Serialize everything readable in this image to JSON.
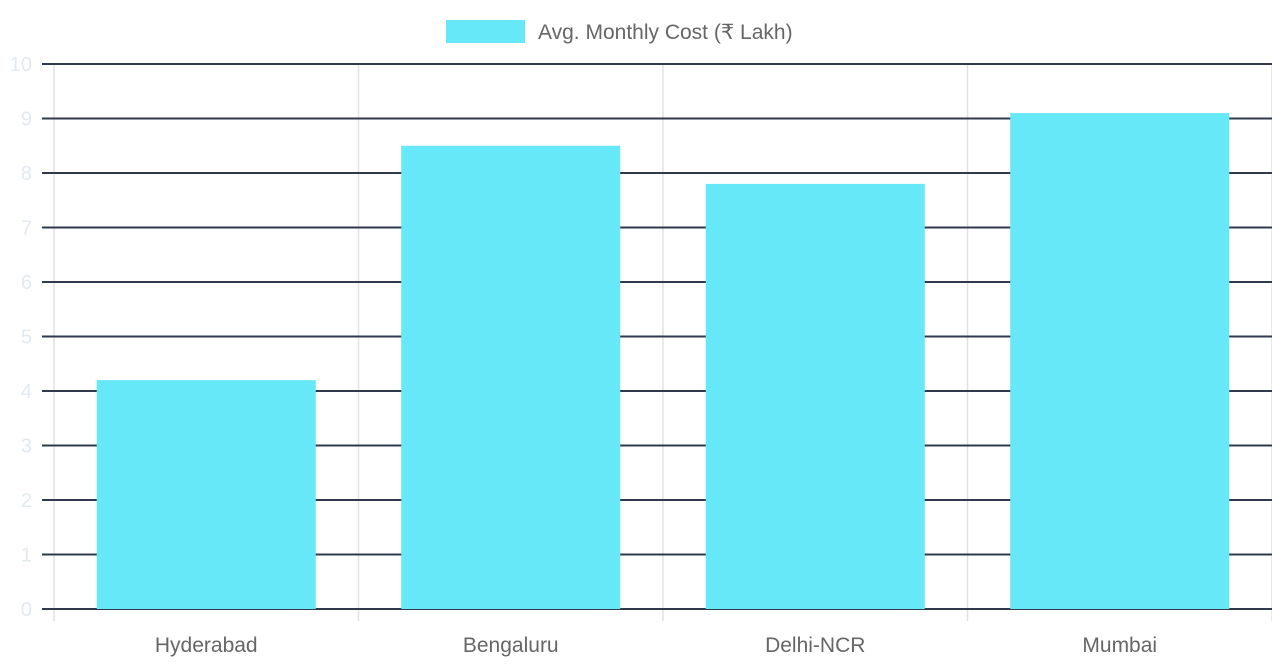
{
  "chart_data": {
    "type": "bar",
    "categories": [
      "Hyderabad",
      "Bengaluru",
      "Delhi-NCR",
      "Mumbai"
    ],
    "series": [
      {
        "name": "Avg. Monthly Cost (₹ Lakh)",
        "values": [
          4.2,
          8.5,
          7.8,
          9.1
        ],
        "color": "#67e8f9"
      }
    ],
    "ylim": [
      0,
      10
    ],
    "yticks": [
      "0",
      "1",
      "2",
      "3",
      "4",
      "5",
      "6",
      "7",
      "8",
      "9",
      "10"
    ],
    "grid": true,
    "legend_position": "top",
    "colors": {
      "grid_horizontal": "#2f3b4c",
      "grid_vertical": "#e2e2e2",
      "tick_label": "#e3e9f1",
      "category_label": "#666666"
    }
  }
}
